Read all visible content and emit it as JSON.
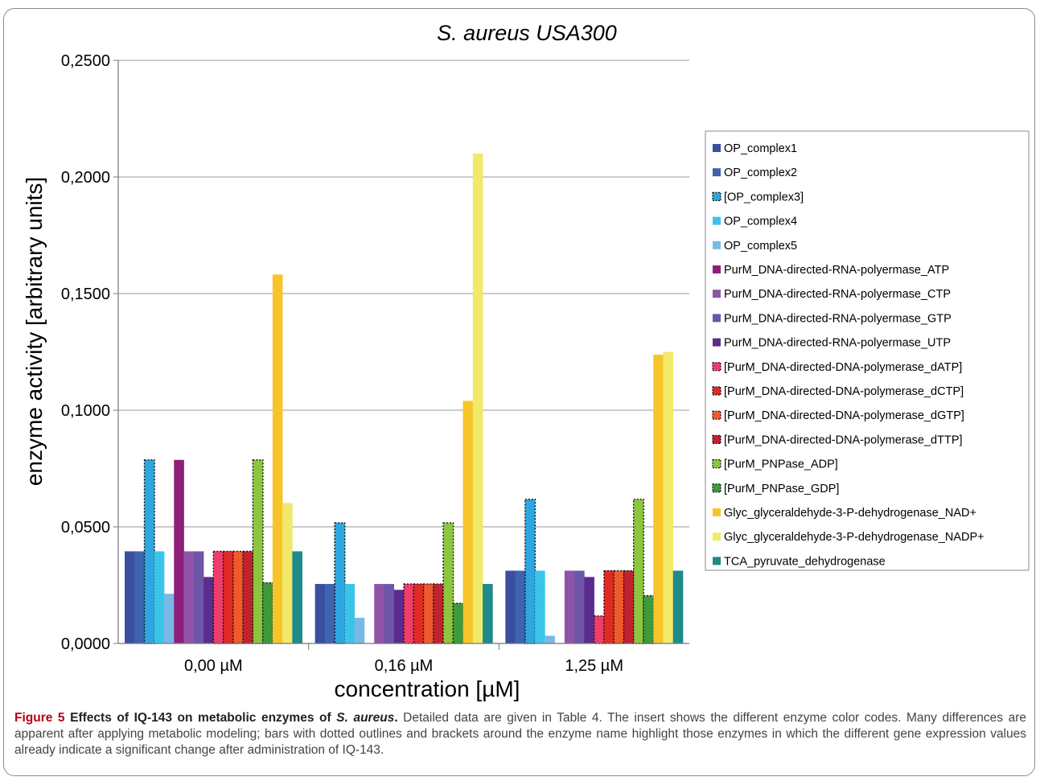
{
  "chart_data": {
    "type": "bar",
    "title": "S. aureus USA300",
    "xlabel": "concentration [µM]",
    "ylabel": "enzyme activity [arbitrary units]",
    "ylim": [
      0,
      0.25
    ],
    "yticks": [
      "0,0000",
      "0,0500",
      "0,1000",
      "0,1500",
      "0,2000",
      "0,2500"
    ],
    "ytick_values": [
      0,
      0.05,
      0.1,
      0.15,
      0.2,
      0.25
    ],
    "grid": "horizontal",
    "legend_position": "right",
    "categories": [
      "0,00 µM",
      "0,16 µM",
      "1,25 µM"
    ],
    "series": [
      {
        "name": "OP_complex1",
        "color": "#3a4f9e",
        "dotted": false,
        "values": [
          0.0395,
          0.0255,
          0.0312
        ]
      },
      {
        "name": "OP_complex2",
        "color": "#3e63b0",
        "dotted": false,
        "values": [
          0.0395,
          0.0255,
          0.0312
        ]
      },
      {
        "name": "[OP_complex3]",
        "color": "#2ea7e0",
        "dotted": true,
        "values": [
          0.0787,
          0.0517,
          0.0618
        ]
      },
      {
        "name": "OP_complex4",
        "color": "#3bc4ea",
        "dotted": false,
        "values": [
          0.0395,
          0.0255,
          0.0312
        ]
      },
      {
        "name": "OP_complex5",
        "color": "#7ab8e6",
        "dotted": false,
        "values": [
          0.0213,
          0.011,
          0.0033
        ]
      },
      {
        "name": "PurM_DNA-directed-RNA-polyermase_ATP",
        "color": "#8e1f78",
        "dotted": false,
        "values": [
          0.0787,
          0,
          0
        ]
      },
      {
        "name": "PurM_DNA-directed-RNA-polyermase_CTP",
        "color": "#8f54a8",
        "dotted": false,
        "values": [
          0.0395,
          0.0255,
          0.0312
        ]
      },
      {
        "name": "PurM_DNA-directed-RNA-polyermase_GTP",
        "color": "#6d56a8",
        "dotted": false,
        "values": [
          0.0395,
          0.0255,
          0.0312
        ]
      },
      {
        "name": "PurM_DNA-directed-RNA-polyermase_UTP",
        "color": "#5b2c8e",
        "dotted": false,
        "values": [
          0.0285,
          0.023,
          0.0285
        ]
      },
      {
        "name": "[PurM_DNA-directed-DNA-polymerase_dATP]",
        "color": "#ee3d6a",
        "dotted": true,
        "values": [
          0.0395,
          0.0255,
          0.0118
        ]
      },
      {
        "name": "[PurM_DNA-directed-DNA-polymerase_dCTP]",
        "color": "#e12a26",
        "dotted": true,
        "values": [
          0.0395,
          0.0255,
          0.0312
        ]
      },
      {
        "name": "[PurM_DNA-directed-DNA-polymerase_dGTP]",
        "color": "#f05a2b",
        "dotted": true,
        "values": [
          0.0395,
          0.0255,
          0.0312
        ]
      },
      {
        "name": "[PurM_DNA-directed-DNA-polymerase_dTTP]",
        "color": "#c22130",
        "dotted": true,
        "values": [
          0.0395,
          0.0255,
          0.0312
        ]
      },
      {
        "name": "[PurM_PNPase_ADP]",
        "color": "#8cc63f",
        "dotted": true,
        "values": [
          0.0787,
          0.0517,
          0.0618
        ]
      },
      {
        "name": "[PurM_PNPase_GDP]",
        "color": "#3f9a3c",
        "dotted": true,
        "values": [
          0.026,
          0.0172,
          0.0205
        ]
      },
      {
        "name": "Glyc_glyceraldehyde-3-P-dehydrogenase_NAD+",
        "color": "#f7c52a",
        "dotted": false,
        "values": [
          0.1582,
          0.104,
          0.1238
        ]
      },
      {
        "name": "Glyc_glyceraldehyde-3-P-dehydrogenase_NADP+",
        "color": "#f0e96a",
        "dotted": false,
        "values": [
          0.0602,
          0.21,
          0.125
        ]
      },
      {
        "name": "TCA_pyruvate_dehydrogenase",
        "color": "#1e8a8a",
        "dotted": false,
        "values": [
          0.0395,
          0.0255,
          0.0312
        ]
      }
    ]
  },
  "caption": {
    "label": "Figure 5",
    "title_text": "Effects of IQ-143 on metabolic enzymes of ",
    "title_italic": "S. aureus",
    "title_end": ".",
    "body": " Detailed data are given in Table 4. The insert shows the different enzyme color codes. Many differences are apparent after applying metabolic modeling; bars with dotted outlines and brackets around the enzyme name highlight those enzymes in which the different gene expression values already indicate a significant change after administration of IQ-143."
  }
}
